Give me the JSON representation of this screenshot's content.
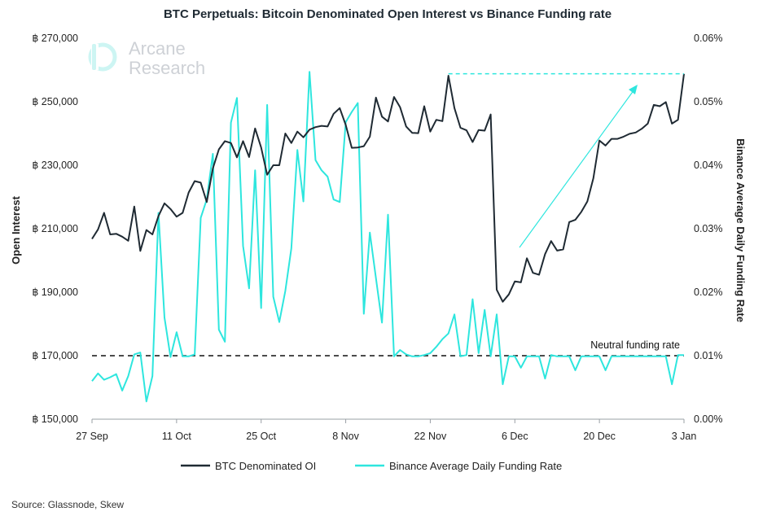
{
  "chart_data": {
    "type": "line",
    "title": "BTC Perpetuals: Bitcoin Denominated Open Interest vs Binance Funding rate",
    "ylabel": "Open Interest",
    "y2label": "Binance Average Daily Funding Rate",
    "source": "Source: Glassnode, Skew",
    "brand": [
      "Arcane",
      "Research"
    ],
    "annotation": "Neutral funding rate",
    "neutral_rate": 0.01,
    "ylim": [
      150000,
      270000
    ],
    "y2lim": [
      0.0,
      0.06
    ],
    "x_day_range": [
      0,
      98
    ],
    "x_ticks": [
      {
        "label": "27 Sep",
        "day": 0
      },
      {
        "label": "11 Oct",
        "day": 14
      },
      {
        "label": "25 Oct",
        "day": 28
      },
      {
        "label": "8 Nov",
        "day": 42
      },
      {
        "label": "22 Nov",
        "day": 56
      },
      {
        "label": "6 Dec",
        "day": 70
      },
      {
        "label": "20 Dec",
        "day": 84
      },
      {
        "label": "3 Jan",
        "day": 98
      }
    ],
    "y_ticks": [
      "฿ 150,000",
      "฿ 170,000",
      "฿ 190,000",
      "฿ 210,000",
      "฿ 230,000",
      "฿ 250,000",
      "฿ 270,000"
    ],
    "y_tick_values": [
      150000,
      170000,
      190000,
      210000,
      230000,
      250000,
      270000
    ],
    "y2_ticks": [
      "0.00%",
      "0.01%",
      "0.02%",
      "0.03%",
      "0.04%",
      "0.05%",
      "0.06%"
    ],
    "y2_tick_values": [
      0.0,
      0.01,
      0.02,
      0.03,
      0.04,
      0.05,
      0.06
    ],
    "colors": {
      "oi": "#1f2a33",
      "funding": "#2ee6de",
      "dashed": "#111111",
      "arrow": "#2ee6de"
    },
    "legend_position": "bottom-center",
    "series": [
      {
        "name": "BTC Denominated OI",
        "axis": "left",
        "x": [
          0,
          1,
          2,
          3,
          4,
          5,
          6,
          7,
          8,
          9,
          10,
          11,
          12,
          13,
          14,
          15,
          16,
          17,
          18,
          19,
          20,
          21,
          22,
          23,
          24,
          25,
          26,
          27,
          28,
          29,
          30,
          31,
          32,
          33,
          34,
          35,
          36,
          37,
          38,
          39,
          40,
          41,
          42,
          43,
          44,
          45,
          46,
          47,
          48,
          49,
          50,
          51,
          52,
          53,
          54,
          55,
          56,
          57,
          58,
          59,
          60,
          61,
          62,
          63,
          64,
          65,
          66,
          67,
          68,
          69,
          70,
          71,
          72,
          73,
          74,
          75,
          76,
          77,
          78,
          79,
          80,
          81,
          82,
          83,
          84,
          85,
          86,
          87,
          88,
          89,
          90,
          91,
          92,
          93,
          94,
          95,
          96,
          97,
          98
        ],
        "values": [
          206800,
          209800,
          215000,
          208200,
          208400,
          207500,
          206200,
          217000,
          203000,
          209600,
          208200,
          214000,
          218000,
          216200,
          213800,
          215000,
          221400,
          225000,
          224500,
          218400,
          229000,
          235000,
          237600,
          237000,
          232500,
          237600,
          232600,
          241600,
          235600,
          227000,
          230000,
          230000,
          240000,
          237000,
          240600,
          238800,
          241200,
          242000,
          242400,
          242200,
          246200,
          248000,
          242700,
          235500,
          235600,
          236000,
          239000,
          251300,
          245300,
          243800,
          251500,
          248300,
          242200,
          240200,
          240100,
          248600,
          240600,
          244300,
          243900,
          258200,
          248000,
          241800,
          241000,
          237300,
          241100,
          240900,
          246000,
          190800,
          187000,
          189300,
          193400,
          193100,
          200700,
          196100,
          195500,
          202000,
          206100,
          203100,
          203500,
          212100,
          212800,
          215300,
          218600,
          225900,
          237800,
          236200,
          238300,
          238300,
          239000,
          239900,
          240300,
          241500,
          243100,
          249000,
          248600,
          249900,
          243100,
          244300,
          258800
        ]
      },
      {
        "name": "Binance Average Daily Funding Rate",
        "axis": "right",
        "x": [
          0,
          1,
          2,
          3,
          4,
          5,
          6,
          7,
          8,
          9,
          10,
          11,
          12,
          13,
          14,
          15,
          16,
          17,
          18,
          19,
          20,
          21,
          22,
          23,
          24,
          25,
          26,
          27,
          28,
          29,
          30,
          31,
          32,
          33,
          34,
          35,
          36,
          37,
          38,
          39,
          40,
          41,
          42,
          43,
          44,
          45,
          46,
          47,
          48,
          49,
          50,
          51,
          52,
          53,
          54,
          55,
          56,
          57,
          58,
          59,
          60,
          61,
          62,
          63,
          64,
          65,
          66,
          67,
          68,
          69,
          70,
          71,
          72,
          73,
          74,
          75,
          76,
          77,
          78,
          79,
          80,
          81,
          82,
          83,
          84,
          85,
          86,
          87,
          88,
          89,
          90,
          91,
          92,
          93,
          94,
          95,
          96,
          97,
          98
        ],
        "values": [
          0.006,
          0.0072,
          0.0062,
          0.0066,
          0.0071,
          0.0045,
          0.0068,
          0.0102,
          0.0105,
          0.0028,
          0.0068,
          0.0325,
          0.016,
          0.0098,
          0.0137,
          0.0099,
          0.0099,
          0.0102,
          0.0317,
          0.0346,
          0.0418,
          0.0141,
          0.0122,
          0.0467,
          0.0506,
          0.0273,
          0.0206,
          0.0392,
          0.0175,
          0.0495,
          0.0193,
          0.0153,
          0.0202,
          0.0269,
          0.0424,
          0.0343,
          0.0547,
          0.0408,
          0.0392,
          0.0382,
          0.0346,
          0.0342,
          0.0468,
          0.0484,
          0.0498,
          0.0166,
          0.0294,
          0.0222,
          0.0152,
          0.0322,
          0.0099,
          0.0109,
          0.0102,
          0.0099,
          0.0099,
          0.0101,
          0.0104,
          0.0114,
          0.0126,
          0.0135,
          0.0165,
          0.0099,
          0.0101,
          0.0189,
          0.0104,
          0.0172,
          0.0099,
          0.0165,
          0.0055,
          0.0099,
          0.0099,
          0.0081,
          0.0099,
          0.0099,
          0.0099,
          0.0064,
          0.0101,
          0.0099,
          0.0099,
          0.0099,
          0.0077,
          0.0099,
          0.0099,
          0.0099,
          0.0099,
          0.0077,
          0.0099,
          0.0099,
          0.0099,
          0.0099,
          0.0099,
          0.0099,
          0.0099,
          0.0099,
          0.0099,
          0.0099,
          0.0055,
          0.0101,
          0.0101
        ]
      }
    ]
  }
}
